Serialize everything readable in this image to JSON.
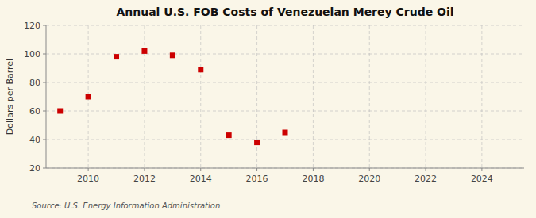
{
  "chart_data": {
    "type": "scatter",
    "title": "Annual U.S. FOB Costs of Venezuelan Merey Crude Oil",
    "y_label": "Dollars per Barrel",
    "annotations": [
      "Source: U.S. Energy Information Administration"
    ],
    "x": [
      2009,
      2010,
      2011,
      2012,
      2013,
      2014,
      2015,
      2016,
      2017
    ],
    "values": [
      60,
      70,
      98,
      102,
      99,
      89,
      43,
      38,
      45
    ],
    "xlim": [
      2008.5,
      2025.5
    ],
    "ylim": [
      20,
      120
    ],
    "xticks": [
      2010,
      2012,
      2014,
      2016,
      2018,
      2020,
      2022,
      2024
    ],
    "yticks": [
      20,
      40,
      60,
      80,
      100,
      120
    ],
    "color": "#cc0000",
    "marker": "square",
    "grid": true
  }
}
